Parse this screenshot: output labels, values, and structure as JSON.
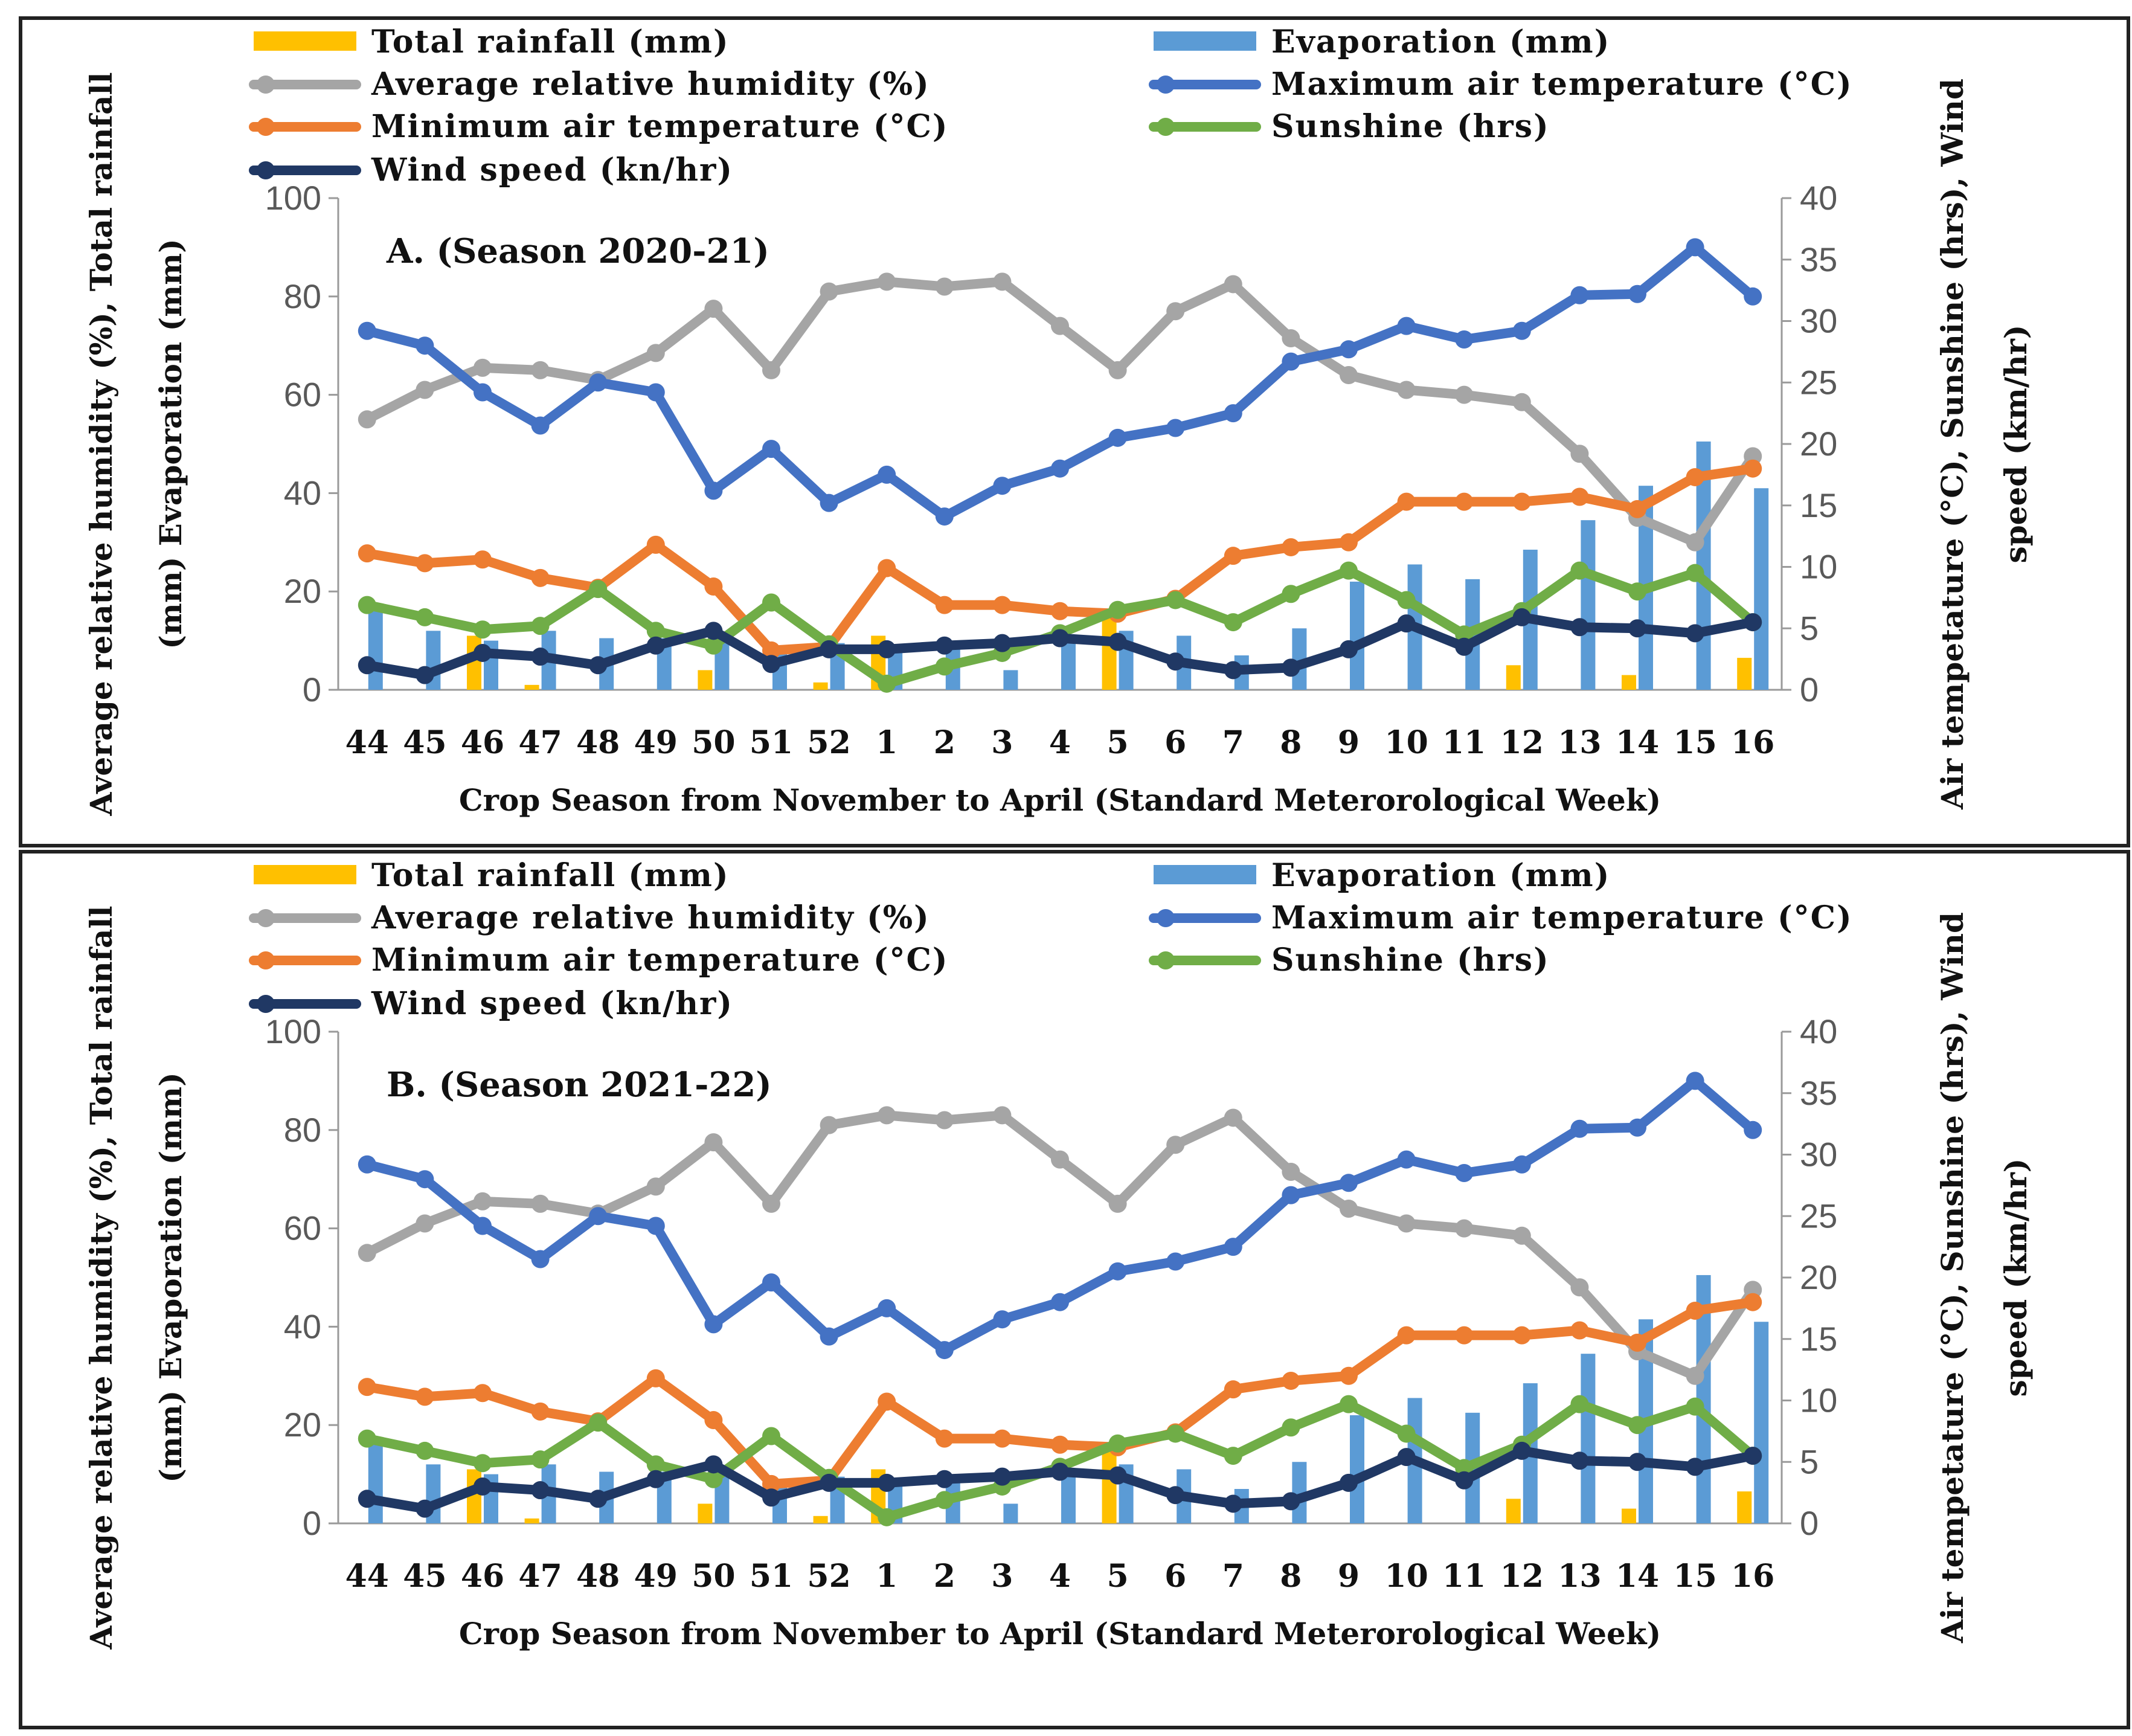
{
  "colors": {
    "rainfall": "#ffc000",
    "evaporation": "#5b9bd5",
    "humidity": "#a5a5a5",
    "max_temp": "#4472c4",
    "min_temp": "#ed7d31",
    "sunshine": "#70ad47",
    "wind": "#203864"
  },
  "chart_data": [
    {
      "type": "bar+line",
      "title": "A. (Season 2020-21)",
      "xlabel": "Crop Season from November to April (Standard Meterorological Week)",
      "ylabel_left_line1": "Average relative humidity (%), Total rainfall",
      "ylabel_left_line2": "(mm) Evaporation (mm)",
      "ylabel_right_line1": "Air tempetature (°C), Sunshine (hrs), Wind",
      "ylabel_right_line2": "speed (km/hr)",
      "ylim_left": [
        0,
        100
      ],
      "ylim_right": [
        0,
        40
      ],
      "yticks_left": [
        "0",
        "20",
        "40",
        "60",
        "80",
        "100"
      ],
      "yticks_right": [
        "0",
        "5",
        "10",
        "15",
        "20",
        "25",
        "30",
        "35",
        "40"
      ],
      "categories": [
        "44",
        "45",
        "46",
        "47",
        "48",
        "49",
        "50",
        "51",
        "52",
        "1",
        "2",
        "3",
        "4",
        "5",
        "6",
        "7",
        "8",
        "9",
        "10",
        "11",
        "12",
        "13",
        "14",
        "15",
        "16"
      ],
      "legend": [
        "Total rainfall (mm)",
        "Evaporation (mm)",
        "Average relative humidity (%)",
        "Maximum air temperature (°C)",
        "Minimum air temperature (°C)",
        "Sunshine (hrs)",
        "Wind speed (kn/hr)"
      ],
      "bars_left_axis": [
        {
          "name": "Total rainfall (mm)",
          "color_key": "rainfall",
          "values": [
            0,
            0,
            11,
            1,
            0,
            0,
            4,
            0,
            1.5,
            11,
            0,
            0,
            0,
            15,
            0,
            0,
            0,
            0,
            0,
            0,
            5,
            0,
            3,
            0,
            6.5
          ]
        },
        {
          "name": "Evaporation (mm)",
          "color_key": "evaporation",
          "values": [
            17,
            12,
            10,
            12,
            10.5,
            10.5,
            9.5,
            9,
            9.5,
            9,
            9,
            4,
            10,
            12,
            11,
            7,
            12.5,
            22,
            25.5,
            22.5,
            28.5,
            34.5,
            41.5,
            50.5,
            41
          ]
        }
      ],
      "lines_left_axis": [
        {
          "name": "Average relative humidity (%)",
          "color_key": "humidity",
          "values": [
            55,
            61,
            65.5,
            65,
            63,
            68.5,
            77.5,
            65,
            81,
            83,
            82,
            83,
            74,
            65,
            77,
            82.5,
            71.5,
            64,
            61,
            60,
            58.5,
            48,
            35,
            30,
            47.5
          ]
        }
      ],
      "lines_right_axis": [
        {
          "name": "Maximum air temperature (°C)",
          "color_key": "max_temp",
          "values": [
            29.2,
            28,
            24.2,
            21.5,
            25,
            24.2,
            16.2,
            19.6,
            15.2,
            17.5,
            14.1,
            16.6,
            18,
            20.5,
            21.3,
            22.5,
            26.7,
            27.7,
            29.6,
            28.5,
            29.2,
            32.1,
            32.2,
            36,
            32
          ]
        },
        {
          "name": "Minimum air temperature (°C)",
          "color_key": "min_temp",
          "values": [
            11.1,
            10.3,
            10.6,
            9.1,
            8.3,
            11.8,
            8.4,
            3.2,
            3.5,
            9.9,
            6.9,
            6.9,
            6.4,
            6.2,
            7.4,
            10.9,
            11.6,
            12,
            15.3,
            15.3,
            15.3,
            15.7,
            14.7,
            17.3,
            18
          ]
        },
        {
          "name": "Sunshine (hrs)",
          "color_key": "sunshine",
          "values": [
            6.9,
            5.9,
            4.9,
            5.2,
            8.2,
            4.8,
            3.6,
            7.1,
            3.7,
            0.5,
            1.9,
            3,
            4.6,
            6.5,
            7.3,
            5.5,
            7.8,
            9.7,
            7.3,
            4.5,
            6.4,
            9.7,
            8,
            9.5,
            5.5
          ]
        },
        {
          "name": "Wind speed (kn/hr)",
          "color_key": "wind",
          "values": [
            2,
            1.2,
            3,
            2.7,
            2,
            3.6,
            4.8,
            2.1,
            3.3,
            3.3,
            3.6,
            3.8,
            4.2,
            3.9,
            2.3,
            1.6,
            1.8,
            3.3,
            5.4,
            3.5,
            5.9,
            5.1,
            5,
            4.6,
            5.5
          ]
        }
      ]
    },
    {
      "type": "bar+line",
      "title": "B. (Season 2021-22)",
      "xlabel": "Crop Season from November to April (Standard Meterorological Week)",
      "ylabel_left_line1": "Average relative humidity (%), Total rainfall",
      "ylabel_left_line2": "(mm) Evaporation (mm)",
      "ylabel_right_line1": "Air tempetature (°C), Sunshine (hrs), Wind",
      "ylabel_right_line2": "speed (km/hr)",
      "ylim_left": [
        0,
        100
      ],
      "ylim_right": [
        0,
        40
      ],
      "yticks_left": [
        "0",
        "20",
        "40",
        "60",
        "80",
        "100"
      ],
      "yticks_right": [
        "0",
        "5",
        "10",
        "15",
        "20",
        "25",
        "30",
        "35",
        "40"
      ],
      "categories": [
        "44",
        "45",
        "46",
        "47",
        "48",
        "49",
        "50",
        "51",
        "52",
        "1",
        "2",
        "3",
        "4",
        "5",
        "6",
        "7",
        "8",
        "9",
        "10",
        "11",
        "12",
        "13",
        "14",
        "15",
        "16"
      ],
      "legend": [
        "Total rainfall (mm)",
        "Evaporation (mm)",
        "Average relative humidity (%)",
        "Maximum air temperature (°C)",
        "Minimum air temperature (°C)",
        "Sunshine (hrs)",
        "Wind speed (kn/hr)"
      ],
      "bars_left_axis": [
        {
          "name": "Total rainfall (mm)",
          "color_key": "rainfall",
          "values": [
            0,
            0,
            11,
            1,
            0,
            0,
            4,
            0,
            1.5,
            11,
            0,
            0,
            0,
            15,
            0,
            0,
            0,
            0,
            0,
            0,
            5,
            0,
            3,
            0,
            6.5
          ]
        },
        {
          "name": "Evaporation (mm)",
          "color_key": "evaporation",
          "values": [
            17,
            12,
            10,
            12,
            10.5,
            10.5,
            9.5,
            9,
            9.5,
            9,
            9,
            4,
            10,
            12,
            11,
            7,
            12.5,
            22,
            25.5,
            22.5,
            28.5,
            34.5,
            41.5,
            50.5,
            41
          ]
        }
      ],
      "lines_left_axis": [
        {
          "name": "Average relative humidity (%)",
          "color_key": "humidity",
          "values": [
            55,
            61,
            65.5,
            65,
            63,
            68.5,
            77.5,
            65,
            81,
            83,
            82,
            83,
            74,
            65,
            77,
            82.5,
            71.5,
            64,
            61,
            60,
            58.5,
            48,
            35,
            30,
            47.5
          ]
        }
      ],
      "lines_right_axis": [
        {
          "name": "Maximum air temperature (°C)",
          "color_key": "max_temp",
          "values": [
            29.2,
            28,
            24.2,
            21.5,
            25,
            24.2,
            16.2,
            19.6,
            15.2,
            17.5,
            14.1,
            16.6,
            18,
            20.5,
            21.3,
            22.5,
            26.7,
            27.7,
            29.6,
            28.5,
            29.2,
            32.1,
            32.2,
            36,
            32
          ]
        },
        {
          "name": "Minimum air temperature (°C)",
          "color_key": "min_temp",
          "values": [
            11.1,
            10.3,
            10.6,
            9.1,
            8.3,
            11.8,
            8.4,
            3.2,
            3.5,
            9.9,
            6.9,
            6.9,
            6.4,
            6.2,
            7.4,
            10.9,
            11.6,
            12,
            15.3,
            15.3,
            15.3,
            15.7,
            14.7,
            17.3,
            18
          ]
        },
        {
          "name": "Sunshine (hrs)",
          "color_key": "sunshine",
          "values": [
            6.9,
            5.9,
            4.9,
            5.2,
            8.2,
            4.8,
            3.6,
            7.1,
            3.7,
            0.5,
            1.9,
            3,
            4.6,
            6.5,
            7.3,
            5.5,
            7.8,
            9.7,
            7.3,
            4.5,
            6.4,
            9.7,
            8,
            9.5,
            5.5
          ]
        },
        {
          "name": "Wind speed (kn/hr)",
          "color_key": "wind",
          "values": [
            2,
            1.2,
            3,
            2.7,
            2,
            3.6,
            4.8,
            2.1,
            3.3,
            3.3,
            3.6,
            3.8,
            4.2,
            3.9,
            2.3,
            1.6,
            1.8,
            3.3,
            5.4,
            3.5,
            5.9,
            5.1,
            5,
            4.6,
            5.5
          ]
        }
      ]
    }
  ]
}
